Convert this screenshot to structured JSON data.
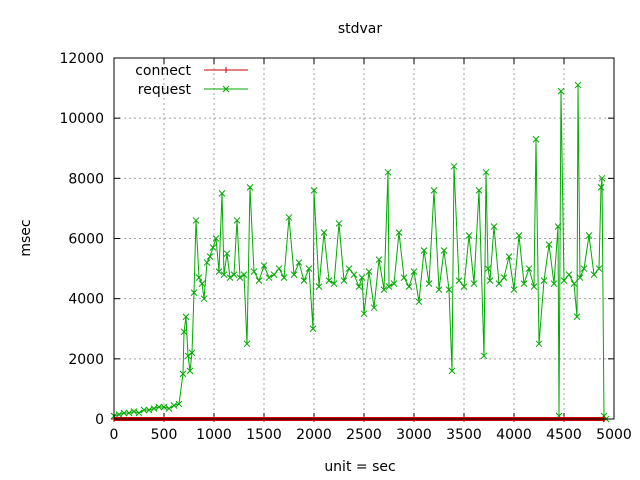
{
  "chart_data": {
    "type": "line",
    "title": "stdvar",
    "xlabel": "unit = sec",
    "ylabel": "msec",
    "xlim": [
      0,
      5000
    ],
    "ylim": [
      0,
      12000
    ],
    "x_ticks": [
      0,
      500,
      1000,
      1500,
      2000,
      2500,
      3000,
      3500,
      4000,
      4500,
      5000
    ],
    "y_ticks": [
      0,
      2000,
      4000,
      6000,
      8000,
      10000,
      12000
    ],
    "x_tick_labels": [
      "0",
      "500",
      "1000",
      "1500",
      "2000",
      "2500",
      "3000",
      "3500",
      "4000",
      "4500",
      "5000"
    ],
    "y_tick_labels": [
      "0",
      "2000",
      "4000",
      "6000",
      "8000",
      "10000",
      "12000"
    ],
    "grid": true,
    "legend_position": "top-left",
    "series": [
      {
        "name": "connect",
        "color": "#cc0000",
        "marker": "plus",
        "x": [
          0,
          500,
          1000,
          1500,
          2000,
          2500,
          3000,
          3500,
          4000,
          4500,
          4900
        ],
        "y": [
          0,
          0,
          0,
          0,
          0,
          0,
          0,
          0,
          0,
          0,
          0
        ]
      },
      {
        "name": "request",
        "color": "#00aa00",
        "marker": "x",
        "x": [
          0,
          50,
          100,
          150,
          200,
          250,
          300,
          350,
          400,
          450,
          500,
          550,
          600,
          650,
          690,
          700,
          720,
          740,
          760,
          780,
          800,
          820,
          850,
          880,
          900,
          930,
          960,
          990,
          1020,
          1050,
          1080,
          1100,
          1130,
          1160,
          1200,
          1230,
          1260,
          1300,
          1330,
          1360,
          1400,
          1450,
          1500,
          1550,
          1600,
          1650,
          1700,
          1750,
          1800,
          1850,
          1900,
          1950,
          1990,
          2000,
          2050,
          2100,
          2150,
          2200,
          2250,
          2300,
          2350,
          2400,
          2450,
          2480,
          2500,
          2550,
          2600,
          2650,
          2700,
          2740,
          2750,
          2800,
          2850,
          2900,
          2950,
          3000,
          3050,
          3100,
          3150,
          3200,
          3250,
          3300,
          3350,
          3380,
          3400,
          3450,
          3500,
          3550,
          3600,
          3650,
          3700,
          3720,
          3740,
          3760,
          3800,
          3850,
          3900,
          3950,
          4000,
          4050,
          4100,
          4150,
          4200,
          4220,
          4250,
          4300,
          4350,
          4400,
          4440,
          4450,
          4470,
          4500,
          4550,
          4600,
          4630,
          4640,
          4660,
          4700,
          4750,
          4800,
          4850,
          4870,
          4880,
          4900,
          4920
        ],
        "y": [
          100,
          150,
          200,
          200,
          250,
          200,
          300,
          300,
          350,
          400,
          400,
          350,
          450,
          500,
          1500,
          2900,
          3400,
          2100,
          1600,
          2200,
          4200,
          6600,
          4700,
          4500,
          4000,
          5200,
          5400,
          5700,
          6000,
          4900,
          7500,
          4800,
          5500,
          4700,
          4800,
          6600,
          4700,
          4800,
          2500,
          7700,
          4900,
          4600,
          5100,
          4700,
          4800,
          5000,
          4700,
          6700,
          4800,
          5200,
          4600,
          5000,
          3000,
          7600,
          4400,
          6200,
          4600,
          4500,
          6500,
          4600,
          5000,
          4800,
          4400,
          4700,
          3500,
          4900,
          3700,
          5300,
          4300,
          8200,
          4400,
          4500,
          6200,
          4700,
          4400,
          4900,
          3900,
          5600,
          4500,
          7600,
          4300,
          5600,
          4300,
          1600,
          8400,
          4600,
          4400,
          6100,
          4500,
          7600,
          2100,
          8200,
          5000,
          4600,
          6400,
          4500,
          4700,
          5400,
          4300,
          6100,
          4500,
          5000,
          4400,
          9300,
          2500,
          4600,
          5800,
          4500,
          6400,
          100,
          10900,
          4600,
          4800,
          4500,
          3400,
          11100,
          4700,
          5000,
          6100,
          4800,
          5000,
          7700,
          8000,
          100,
          0
        ]
      }
    ]
  }
}
